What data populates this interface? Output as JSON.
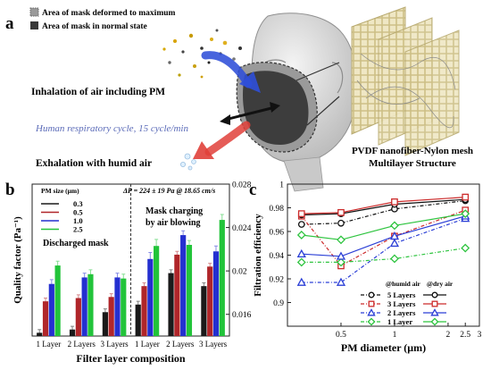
{
  "panel_a": {
    "letter": "a",
    "legend": [
      {
        "label": "Area of mask deformed to maximum",
        "color": "#9a9a9a"
      },
      {
        "label": "Area of mask in normal state",
        "color": "#3a3a3a"
      }
    ],
    "inhalation_label": "Inhalation of air including PM",
    "cycle_label": "Human respiratory cycle, 15 cycle/min",
    "exhalation_label": "Exhalation with humid air",
    "structure_label_line1": "PVDF nanofiber-Nylon mesh",
    "structure_label_line2": "Multilayer Structure",
    "colors": {
      "inhale_arrow": "#2f4fd8",
      "exhale_arrow": "#e0403a",
      "cycle_text": "#5b6bb8"
    }
  },
  "chart_data": [
    {
      "panel": "b",
      "type": "bar",
      "ylabel": "Quality factor (Pa⁻¹)",
      "xlabel": "Filter layer composition",
      "categories": [
        "1 Layer",
        "2 Layers",
        "3 Layers",
        "1 Layer",
        "2 Layers",
        "3 Layers"
      ],
      "ylim": [
        0.014,
        0.028
      ],
      "yticks": [
        0.016,
        0.02,
        0.024,
        0.028
      ],
      "ytick_labels": [
        "0.016",
        "0.02",
        "0.024",
        "0.028"
      ],
      "legend_title": "PM size (μm)",
      "series": [
        {
          "name": "0.3",
          "color": "#1a1a1a",
          "values": [
            0.0143,
            0.0146,
            0.0162,
            0.0169,
            0.0198,
            0.0186
          ],
          "errors": [
            0.0003,
            0.0003,
            0.0003,
            0.0003,
            0.0003,
            0.0003
          ]
        },
        {
          "name": "0.5",
          "color": "#b0262a",
          "values": [
            0.0172,
            0.0175,
            0.0176,
            0.0186,
            0.0215,
            0.0204
          ],
          "errors": [
            0.0003,
            0.0003,
            0.0003,
            0.0003,
            0.0003,
            0.0003
          ]
        },
        {
          "name": "1.0",
          "color": "#2430d0",
          "values": [
            0.0188,
            0.0194,
            0.0194,
            0.0211,
            0.0233,
            0.0218
          ],
          "errors": [
            0.0004,
            0.0004,
            0.0004,
            0.0006,
            0.0004,
            0.0005
          ]
        },
        {
          "name": "2.5",
          "color": "#22c43a",
          "values": [
            0.0205,
            0.0197,
            0.0193,
            0.0223,
            0.0224,
            0.0247
          ],
          "errors": [
            0.0004,
            0.0004,
            0.0004,
            0.0006,
            0.0004,
            0.0005
          ]
        }
      ],
      "annotations": {
        "pressure": "ΔP = 224 ± 19 Pa @ 18.65 cm/s",
        "discharged": "Discharged mask",
        "charging_line1": "Mask charging",
        "charging_line2": "by air blowing"
      }
    },
    {
      "panel": "c",
      "type": "line",
      "ylabel": "Filtration efficiency",
      "xlabel": "PM diameter (μm)",
      "x": [
        0.3,
        0.5,
        1.0,
        2.5
      ],
      "xscale": "log",
      "xlim": [
        0.25,
        3
      ],
      "xticks": [
        0.5,
        1,
        2,
        2.5,
        3
      ],
      "xtick_labels": [
        "0.5",
        "1",
        "2",
        "2.5",
        "3"
      ],
      "ylim": [
        0.88,
        1.0
      ],
      "yticks": [
        0.9,
        0.92,
        0.94,
        0.96,
        0.98,
        1
      ],
      "ytick_labels": [
        "0.9",
        "0.92",
        "0.94",
        "0.96",
        "0.98",
        "1"
      ],
      "legend_groups": [
        "@humid air",
        "@dry air"
      ],
      "layer_names": [
        "5 Layers",
        "3 Layers",
        "2 Layers",
        "1 Layer"
      ],
      "series": [
        {
          "name": "5 Layers",
          "condition": "humid",
          "color": "#111111",
          "marker": "circle",
          "values": [
            0.966,
            0.967,
            0.979,
            0.986
          ]
        },
        {
          "name": "3 Layers",
          "condition": "humid",
          "color": "#cc2b2b",
          "marker": "square",
          "values": [
            0.973,
            0.931,
            0.956,
            0.978
          ]
        },
        {
          "name": "2 Layers",
          "condition": "humid",
          "color": "#2b3fd6",
          "marker": "triangle",
          "values": [
            0.917,
            0.917,
            0.95,
            0.971
          ]
        },
        {
          "name": "1 Layer",
          "condition": "humid",
          "color": "#2ec43f",
          "marker": "diamond",
          "values": [
            0.934,
            0.934,
            0.937,
            0.946
          ]
        },
        {
          "name": "5 Layers",
          "condition": "dry",
          "color": "#111111",
          "marker": "circle",
          "values": [
            0.974,
            0.975,
            0.983,
            0.987
          ]
        },
        {
          "name": "3 Layers",
          "condition": "dry",
          "color": "#cc2b2b",
          "marker": "square",
          "values": [
            0.975,
            0.976,
            0.985,
            0.989
          ]
        },
        {
          "name": "2 Layers",
          "condition": "dry",
          "color": "#2b3fd6",
          "marker": "triangle",
          "values": [
            0.941,
            0.939,
            0.956,
            0.973
          ]
        },
        {
          "name": "1 Layer",
          "condition": "dry",
          "color": "#2ec43f",
          "marker": "diamond",
          "values": [
            0.957,
            0.953,
            0.965,
            0.975
          ]
        }
      ]
    }
  ]
}
